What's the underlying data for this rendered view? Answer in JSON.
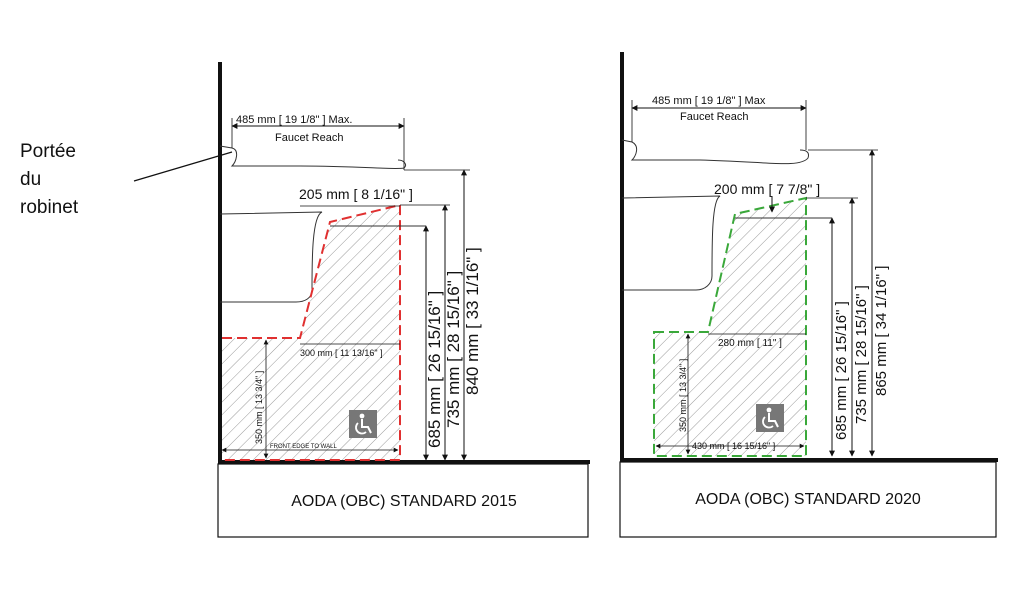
{
  "callout": {
    "lines": [
      "Portée",
      "du",
      "robinet"
    ]
  },
  "colors": {
    "outline_2015": "#e03030",
    "outline_2020": "#3aa83a",
    "ink": "#111111",
    "hatch": "#9a9a9a",
    "icon_bg": "#777777"
  },
  "icons": {
    "accessibility": "wheelchair-icon"
  },
  "panel_2015": {
    "caption": "AODA (OBC) STANDARD 2015",
    "faucet_reach": "485 mm [ 19 1/8\" ] Max.",
    "faucet_reach_label": "Faucet Reach",
    "knee_depth": "205 mm [ 8 1/16\" ]",
    "toe_depth": "300 mm [ 11 13/16\" ]",
    "toe_height": "350 mm [ 13 3/4\" ]",
    "front_edge_label": "FRONT EDGE TO WALL",
    "h_685": "685 mm [ 26 15/16\" ]",
    "h_735": "735 mm [ 28 15/16\" ]",
    "h_840": "840 mm [ 33 1/16\" ]"
  },
  "panel_2020": {
    "caption": "AODA (OBC) STANDARD 2020",
    "faucet_reach": "485 mm [ 19 1/8\" ] Max",
    "faucet_reach_label": "Faucet Reach",
    "knee_depth": "200 mm [ 7 7/8\" ]",
    "toe_depth": "280 mm [ 11\" ]",
    "toe_height": "350 mm [ 13 3/4\" ]",
    "front_depth": "430 mm [ 16 15/16\" ]",
    "h_685": "685 mm [ 26 15/16\" ]",
    "h_735": "735 mm [ 28 15/16\" ]",
    "h_865": "865 mm [ 34 1/16\" ]"
  }
}
